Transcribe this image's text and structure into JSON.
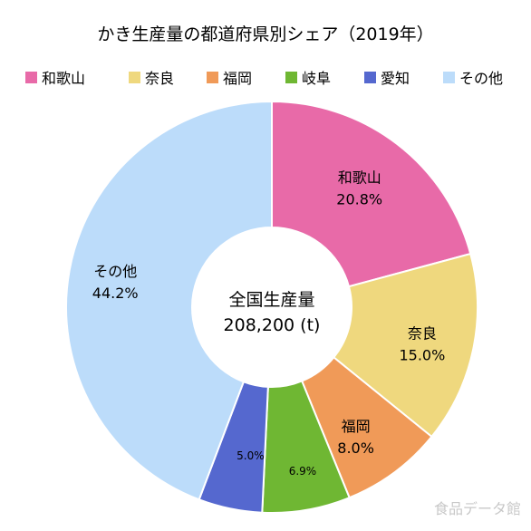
{
  "chart_data": {
    "type": "pie",
    "donut": true,
    "title": "かき生産量の都道府県別シェア（2019年）",
    "center_label": "全国生産量",
    "center_value": "208,200 (t)",
    "legend_position": "top",
    "slices": [
      {
        "name": "和歌山",
        "value": 20.8,
        "label": "20.8%",
        "color": "#e86aa8",
        "show_name": true
      },
      {
        "name": "奈良",
        "value": 15.0,
        "label": "15.0%",
        "color": "#efd87e",
        "show_name": true
      },
      {
        "name": "福岡",
        "value": 8.0,
        "label": "8.0%",
        "color": "#f09a58",
        "show_name": true
      },
      {
        "name": "岐阜",
        "value": 6.9,
        "label": "6.9%",
        "color": "#6fb733",
        "show_name": false
      },
      {
        "name": "愛知",
        "value": 5.0,
        "label": "5.0%",
        "color": "#5568cf",
        "show_name": false
      },
      {
        "name": "その他",
        "value": 44.2,
        "label": "44.2%",
        "color": "#bcdcfa",
        "show_name": true
      }
    ]
  },
  "watermark": "食品データ館"
}
